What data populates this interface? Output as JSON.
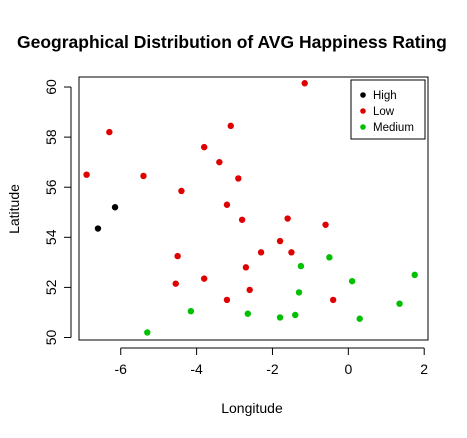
{
  "chart_data": {
    "type": "scatter",
    "title": "Geographical Distribution of AVG Happiness Rating",
    "xlabel": "Longitude",
    "ylabel": "Latitude",
    "xlim": [
      -7.1,
      2.1
    ],
    "ylim": [
      49.9,
      60.4
    ],
    "xticks": [
      -6,
      -4,
      -2,
      0,
      2
    ],
    "yticks": [
      50,
      52,
      54,
      56,
      58,
      60
    ],
    "grid": false,
    "legend_position": "top-right",
    "series": [
      {
        "name": "High",
        "color": "#000000",
        "points": [
          {
            "x": -6.6,
            "y": 54.35
          },
          {
            "x": -6.15,
            "y": 55.2
          }
        ]
      },
      {
        "name": "Low",
        "color": "#DF0000",
        "points": [
          {
            "x": -1.15,
            "y": 60.15
          },
          {
            "x": -6.3,
            "y": 58.2
          },
          {
            "x": -3.1,
            "y": 58.45
          },
          {
            "x": -3.8,
            "y": 57.6
          },
          {
            "x": -3.4,
            "y": 57.0
          },
          {
            "x": -6.9,
            "y": 56.5
          },
          {
            "x": -5.4,
            "y": 56.45
          },
          {
            "x": -2.9,
            "y": 56.35
          },
          {
            "x": -4.4,
            "y": 55.85
          },
          {
            "x": -3.2,
            "y": 55.3
          },
          {
            "x": -1.6,
            "y": 54.75
          },
          {
            "x": -2.8,
            "y": 54.7
          },
          {
            "x": -0.6,
            "y": 54.5
          },
          {
            "x": -1.8,
            "y": 53.85
          },
          {
            "x": -2.3,
            "y": 53.4
          },
          {
            "x": -1.5,
            "y": 53.4
          },
          {
            "x": -4.5,
            "y": 53.25
          },
          {
            "x": -2.7,
            "y": 52.8
          },
          {
            "x": -3.8,
            "y": 52.35
          },
          {
            "x": -4.55,
            "y": 52.15
          },
          {
            "x": -2.6,
            "y": 51.9
          },
          {
            "x": -3.2,
            "y": 51.5
          },
          {
            "x": -0.4,
            "y": 51.5
          }
        ]
      },
      {
        "name": "Medium",
        "color": "#00C000",
        "points": [
          {
            "x": -1.25,
            "y": 52.85
          },
          {
            "x": -0.5,
            "y": 53.2
          },
          {
            "x": 1.75,
            "y": 52.5
          },
          {
            "x": 0.1,
            "y": 52.25
          },
          {
            "x": -1.3,
            "y": 51.8
          },
          {
            "x": 1.35,
            "y": 51.35
          },
          {
            "x": -4.15,
            "y": 51.05
          },
          {
            "x": -2.65,
            "y": 50.95
          },
          {
            "x": -1.4,
            "y": 50.9
          },
          {
            "x": -1.8,
            "y": 50.8
          },
          {
            "x": 0.3,
            "y": 50.75
          },
          {
            "x": -5.3,
            "y": 50.2
          }
        ]
      }
    ]
  }
}
